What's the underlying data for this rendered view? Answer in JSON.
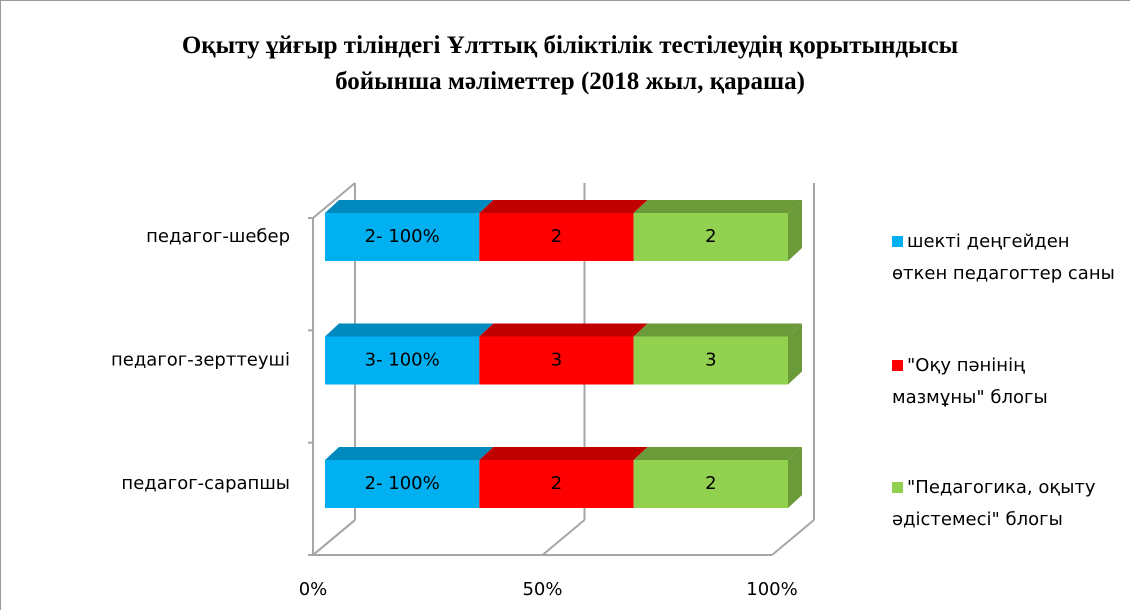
{
  "chart_data": {
    "type": "bar3d_percent_stacked",
    "title": "Оқыту ұйғыр тіліндегі Ұлттық біліктілік тестілеудің қорытындысы бойынша мәліметтер (2018 жыл, қараша)",
    "categories": [
      "педагог-шебер",
      "педагог-зерттеуші",
      "педагог-сарапшы"
    ],
    "series": [
      {
        "name": "шекті деңгейден өткен педагогтер саны",
        "color": "#00b0f0",
        "values": [
          2,
          3,
          2
        ],
        "value_labels": [
          "2- 100%",
          "3- 100%",
          "2- 100%"
        ]
      },
      {
        "name": "\"Оқу пәнінің мазмұны\" блогы",
        "color": "#ff0000",
        "values": [
          2,
          3,
          2
        ]
      },
      {
        "name": "\"Педагогика, оқыту әдістемесі\" блогы",
        "color": "#92d050",
        "values": [
          2,
          3,
          2
        ]
      }
    ],
    "xlim": [
      0,
      100
    ],
    "xticks": [
      {
        "value": 0,
        "label": "0%"
      },
      {
        "value": 50,
        "label": "50%"
      },
      {
        "value": 100,
        "label": "100%"
      }
    ],
    "grid": true,
    "legend": "right"
  }
}
